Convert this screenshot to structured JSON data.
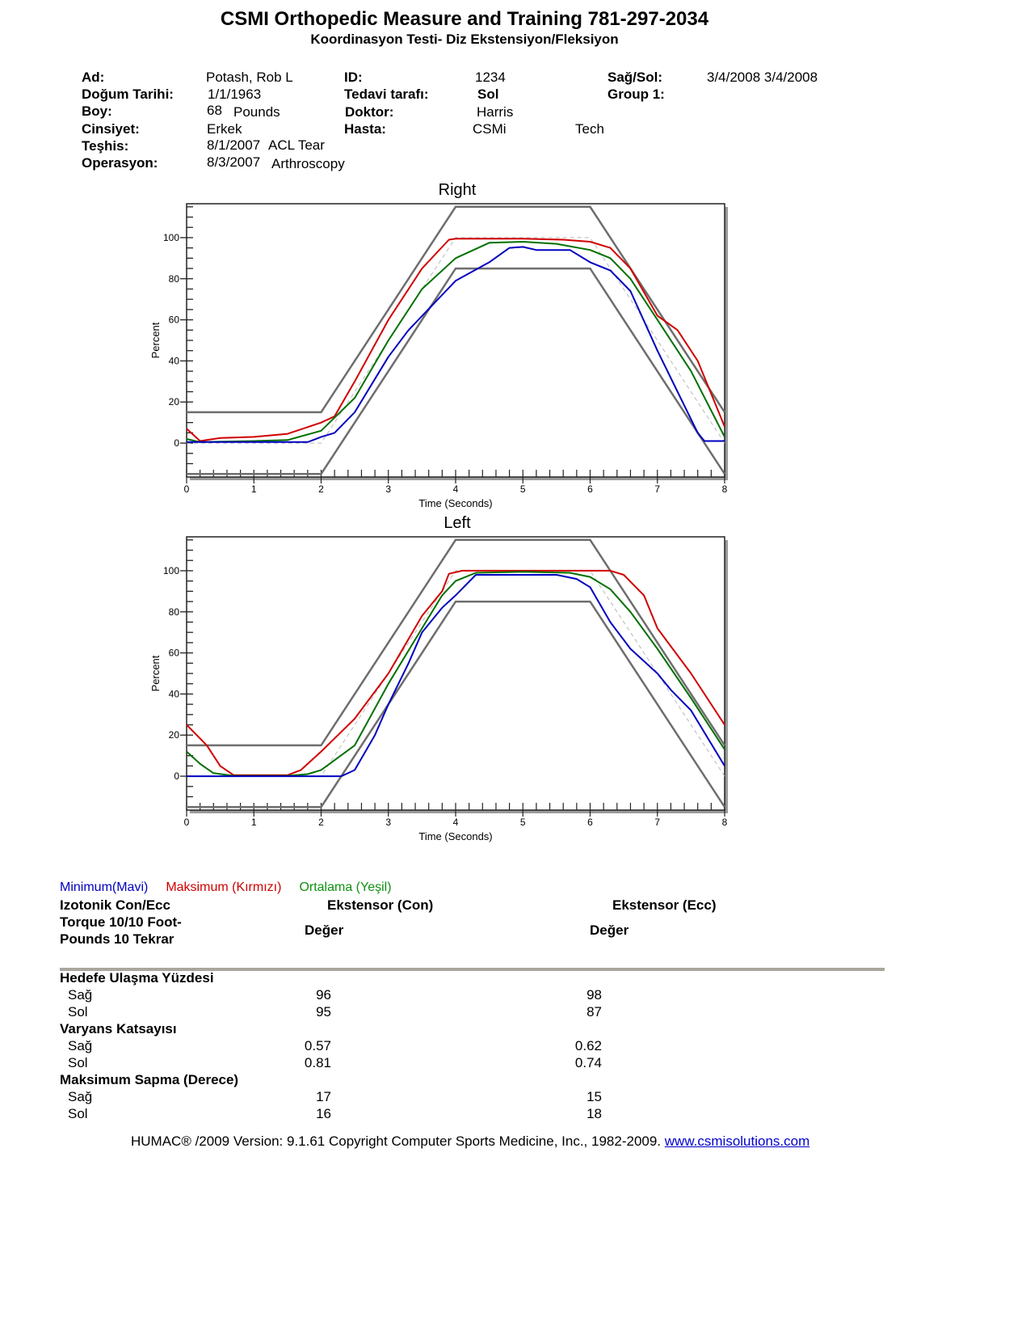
{
  "header": {
    "title": "CSMI Orthopedic Measure and Training 781-297-2034",
    "subtitle": "Koordinasyon Testi- Diz Ekstensiyon/Fleksiyon"
  },
  "patient": {
    "ad_label": "Ad:",
    "ad": "Potash, Rob L",
    "dogum_label": "Doğum Tarihi:",
    "dogum": "1/1/1963",
    "boy_label": "Boy:",
    "boy_num": "68",
    "boy_unit": "Pounds",
    "cinsiyet_label": "Cinsiyet:",
    "cinsiyet": "Erkek",
    "teshis_label": "Teşhis:",
    "teshis_date": "8/1/2007",
    "teshis": "ACL Tear",
    "operasyon_label": "Operasyon:",
    "operasyon_date": "8/3/2007",
    "operasyon": "Arthroscopy",
    "id_label": "ID:",
    "id": "1234",
    "tedavi_label": "Tedavi tarafı:",
    "tedavi": "Sol",
    "doktor_label": "Doktor:",
    "doktor": "Harris",
    "hasta_label": "Hasta:",
    "hasta": "CSMi",
    "hasta2": "Tech",
    "sagsol_label": "Sağ/Sol:",
    "sagsol": "3/4/2008 3/4/2008",
    "group_label": "Group 1:"
  },
  "colors": {
    "min": "#0000c0",
    "max": "#d00000",
    "avg": "#007000",
    "bounds": "#6e6e6e",
    "target": "#b8b8b8"
  },
  "chart_data": [
    {
      "type": "line",
      "title": "Right",
      "xlabel": "Time (Seconds)",
      "ylabel": "Percent",
      "xlim": [
        0,
        8
      ],
      "ylim": [
        -16.5,
        116.5
      ],
      "xticks": [
        0,
        1,
        2,
        3,
        4,
        5,
        6,
        7,
        8
      ],
      "yticks": [
        0,
        20,
        40,
        60,
        80,
        100
      ],
      "bounds": {
        "upper": [
          [
            0,
            15
          ],
          [
            2,
            15
          ],
          [
            4,
            115
          ],
          [
            6,
            115
          ],
          [
            8,
            15
          ]
        ],
        "lower": [
          [
            0,
            -15
          ],
          [
            2,
            -15
          ],
          [
            4,
            85
          ],
          [
            6,
            85
          ],
          [
            8,
            -15
          ]
        ],
        "target": [
          [
            0,
            0
          ],
          [
            2,
            0
          ],
          [
            4,
            100
          ],
          [
            6,
            100
          ],
          [
            8,
            0
          ]
        ]
      },
      "series": [
        {
          "key": "max",
          "points": [
            [
              0,
              7
            ],
            [
              0.2,
              1
            ],
            [
              0.5,
              2.5
            ],
            [
              1,
              3
            ],
            [
              1.5,
              4.5
            ],
            [
              2,
              10
            ],
            [
              2.2,
              13
            ],
            [
              2.5,
              30
            ],
            [
              3,
              60
            ],
            [
              3.5,
              85
            ],
            [
              3.9,
              99
            ],
            [
              4,
              99.5
            ],
            [
              5,
              99.5
            ],
            [
              5.6,
              99
            ],
            [
              6,
              98
            ],
            [
              6.3,
              95
            ],
            [
              6.6,
              85
            ],
            [
              7,
              62
            ],
            [
              7.3,
              55
            ],
            [
              7.6,
              40
            ],
            [
              8,
              8
            ]
          ]
        },
        {
          "key": "avg",
          "points": [
            [
              0,
              2
            ],
            [
              0.2,
              0.5
            ],
            [
              1,
              1
            ],
            [
              1.5,
              1.5
            ],
            [
              2,
              6
            ],
            [
              2.5,
              22
            ],
            [
              3,
              50
            ],
            [
              3.5,
              75
            ],
            [
              4,
              90
            ],
            [
              4.5,
              97.5
            ],
            [
              5,
              98
            ],
            [
              5.5,
              97
            ],
            [
              6,
              94
            ],
            [
              6.3,
              90
            ],
            [
              6.6,
              80
            ],
            [
              7,
              60
            ],
            [
              7.5,
              35
            ],
            [
              8,
              3
            ]
          ]
        },
        {
          "key": "min",
          "points": [
            [
              0,
              0.5
            ],
            [
              1,
              0.5
            ],
            [
              1.8,
              0.5
            ],
            [
              2,
              3
            ],
            [
              2.2,
              5
            ],
            [
              2.5,
              15
            ],
            [
              3,
              42
            ],
            [
              3.3,
              55
            ],
            [
              4,
              79
            ],
            [
              4.5,
              88
            ],
            [
              4.8,
              95
            ],
            [
              5,
              95.5
            ],
            [
              5.2,
              94
            ],
            [
              5.7,
              94
            ],
            [
              6,
              88
            ],
            [
              6.3,
              84
            ],
            [
              6.6,
              74
            ],
            [
              7,
              45
            ],
            [
              7.3,
              25
            ],
            [
              7.6,
              5
            ],
            [
              7.7,
              1
            ],
            [
              8,
              1
            ]
          ]
        }
      ]
    },
    {
      "type": "line",
      "title": "Left",
      "xlabel": "Time (Seconds)",
      "ylabel": "Percent",
      "xlim": [
        0,
        8
      ],
      "ylim": [
        -16.5,
        116.5
      ],
      "xticks": [
        0,
        1,
        2,
        3,
        4,
        5,
        6,
        7,
        8
      ],
      "yticks": [
        0,
        20,
        40,
        60,
        80,
        100
      ],
      "bounds": {
        "upper": [
          [
            0,
            15
          ],
          [
            2,
            15
          ],
          [
            4,
            115
          ],
          [
            6,
            115
          ],
          [
            8,
            15
          ]
        ],
        "lower": [
          [
            0,
            -15
          ],
          [
            2,
            -15
          ],
          [
            4,
            85
          ],
          [
            6,
            85
          ],
          [
            8,
            -15
          ]
        ],
        "target": [
          [
            0,
            0
          ],
          [
            2,
            0
          ],
          [
            4,
            100
          ],
          [
            6,
            100
          ],
          [
            8,
            0
          ]
        ]
      },
      "series": [
        {
          "key": "max",
          "points": [
            [
              0,
              25
            ],
            [
              0.3,
              15
            ],
            [
              0.5,
              5
            ],
            [
              0.7,
              0.5
            ],
            [
              1.5,
              0.5
            ],
            [
              1.7,
              3
            ],
            [
              2,
              12
            ],
            [
              2.5,
              28
            ],
            [
              3,
              50
            ],
            [
              3.5,
              78
            ],
            [
              3.8,
              90
            ],
            [
              3.9,
              98.5
            ],
            [
              4.1,
              100
            ],
            [
              5,
              100
            ],
            [
              6,
              100
            ],
            [
              6.3,
              100
            ],
            [
              6.5,
              98
            ],
            [
              6.8,
              88
            ],
            [
              7,
              72
            ],
            [
              7.5,
              50
            ],
            [
              8,
              25
            ]
          ]
        },
        {
          "key": "avg",
          "points": [
            [
              0,
              12
            ],
            [
              0.2,
              6
            ],
            [
              0.4,
              1.5
            ],
            [
              0.7,
              0.2
            ],
            [
              1.5,
              0.2
            ],
            [
              1.8,
              1
            ],
            [
              2,
              3
            ],
            [
              2.5,
              15
            ],
            [
              3,
              45
            ],
            [
              3.5,
              72
            ],
            [
              3.8,
              88
            ],
            [
              4,
              95
            ],
            [
              4.3,
              99
            ],
            [
              5,
              99.5
            ],
            [
              5.7,
              99
            ],
            [
              6,
              97
            ],
            [
              6.3,
              91
            ],
            [
              6.6,
              80
            ],
            [
              7,
              62
            ],
            [
              7.5,
              38
            ],
            [
              8,
              13
            ]
          ]
        },
        {
          "key": "min",
          "points": [
            [
              0,
              0
            ],
            [
              2.3,
              0
            ],
            [
              2.5,
              3
            ],
            [
              2.8,
              20
            ],
            [
              3,
              35
            ],
            [
              3.3,
              55
            ],
            [
              3.5,
              70
            ],
            [
              3.8,
              82
            ],
            [
              4,
              88
            ],
            [
              4.3,
              98
            ],
            [
              5,
              98
            ],
            [
              5.5,
              98
            ],
            [
              5.8,
              96
            ],
            [
              6,
              92
            ],
            [
              6.3,
              75
            ],
            [
              6.6,
              62
            ],
            [
              7,
              50
            ],
            [
              7.2,
              42
            ],
            [
              7.5,
              32
            ],
            [
              8,
              5
            ]
          ]
        }
      ]
    }
  ],
  "legend": {
    "min": "Minimum(Mavi)",
    "max": "Maksimum (Kırmızı)",
    "avg": "Ortalama (Yeşil)"
  },
  "table": {
    "title_line1": "Izotonik Con/Ecc",
    "title_line2": "Torque 10/10 Foot-",
    "title_line3": "Pounds 10 Tekrar",
    "col1": "Ekstensor (Con)",
    "col2": "Ekstensor (Ecc)",
    "col1_sub": "Değer",
    "col2_sub": "Değer",
    "sections": [
      {
        "title": "Hedefe Ulaşma Yüzdesi",
        "rows": [
          {
            "label": "Sağ",
            "con": "96",
            "ecc": "98"
          },
          {
            "label": "Sol",
            "con": "95",
            "ecc": "87"
          }
        ]
      },
      {
        "title": "Varyans Katsayısı",
        "rows": [
          {
            "label": "Sağ",
            "con": "0.57",
            "ecc": "0.62"
          },
          {
            "label": "Sol",
            "con": "0.81",
            "ecc": "0.74"
          }
        ]
      },
      {
        "title": "Maksimum Sapma (Derece)",
        "rows": [
          {
            "label": "Sağ",
            "con": "17",
            "ecc": "15"
          },
          {
            "label": "Sol",
            "con": "16",
            "ecc": "18"
          }
        ]
      }
    ]
  },
  "footer": {
    "text": "HUMAC® /2009 Version: 9.1.61 Copyright Computer Sports Medicine, Inc., 1982-2009.",
    "link": "www.csmisolutions.com"
  }
}
